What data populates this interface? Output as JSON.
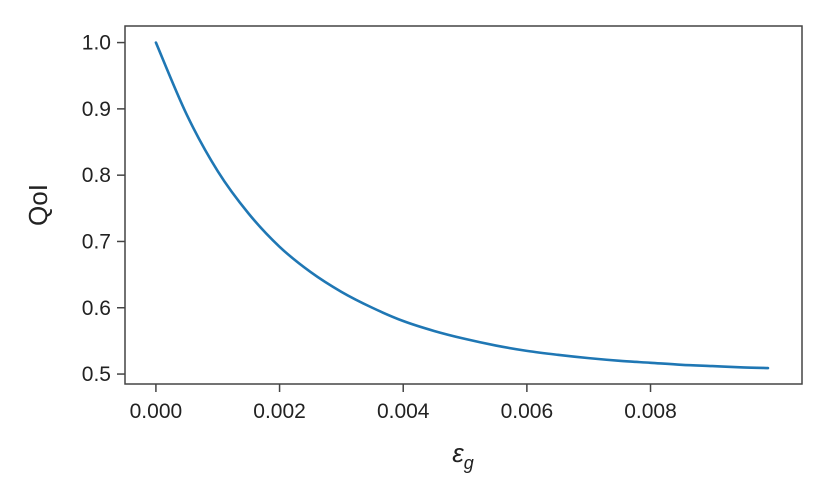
{
  "chart_data": {
    "type": "line",
    "title": "",
    "xlabel": "ε",
    "xlabel_subscript": "g",
    "ylabel": "QoI",
    "xlim": [
      -0.0005,
      0.01045
    ],
    "ylim": [
      0.485,
      1.025
    ],
    "x_ticks": [
      0.0,
      0.002,
      0.004,
      0.006,
      0.008
    ],
    "x_tick_labels": [
      "0.000",
      "0.002",
      "0.004",
      "0.006",
      "0.008"
    ],
    "y_ticks": [
      0.5,
      0.6,
      0.7,
      0.8,
      0.9,
      1.0
    ],
    "y_tick_labels": [
      "0.5",
      "0.6",
      "0.7",
      "0.8",
      "0.9",
      "1.0"
    ],
    "grid": false,
    "series": [
      {
        "color": "#1f77b4",
        "x": [
          0.0,
          0.0005,
          0.001,
          0.0015,
          0.002,
          0.0025,
          0.003,
          0.0035,
          0.004,
          0.0045,
          0.005,
          0.0055,
          0.006,
          0.0065,
          0.007,
          0.0075,
          0.008,
          0.0085,
          0.009,
          0.0095,
          0.0099
        ],
        "y": [
          1.0,
          0.891,
          0.806,
          0.742,
          0.692,
          0.654,
          0.624,
          0.6,
          0.58,
          0.565,
          0.553,
          0.543,
          0.535,
          0.529,
          0.524,
          0.52,
          0.517,
          0.514,
          0.512,
          0.51,
          0.509
        ]
      }
    ]
  }
}
